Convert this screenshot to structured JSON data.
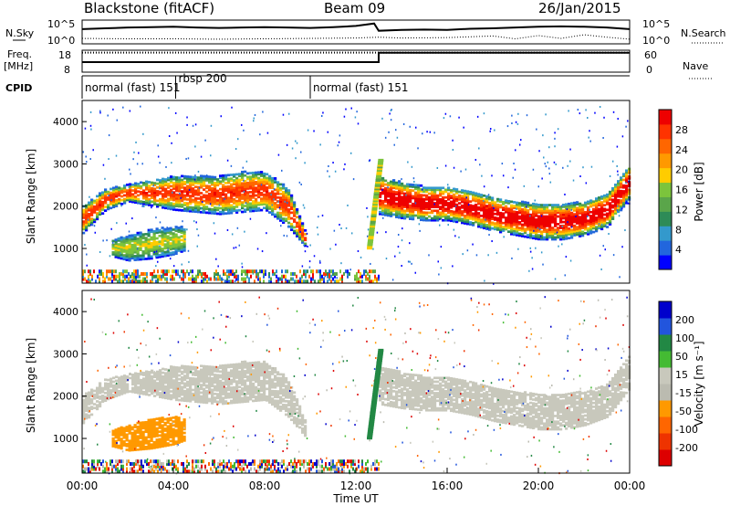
{
  "header": {
    "station": "Blackstone (fitACF)",
    "beam": "Beam 09",
    "date": "26/Jan/2015"
  },
  "left_labels": {
    "nsky": "N.Sky",
    "freq": "Freq.",
    "mhz": "[MHz]",
    "cpid": "CPID"
  },
  "right_labels": {
    "nsearch": "N.Search",
    "nave": "Nave"
  },
  "cpid_segments": [
    {
      "label": "normal (fast) 151",
      "start_hour": 0
    },
    {
      "label": "rbsp 200",
      "start_hour": 4.1
    },
    {
      "label": "normal (fast) 151",
      "start_hour": 10.0
    }
  ],
  "colors": {
    "power": [
      "#0000ff",
      "#2266dd",
      "#3399cc",
      "#2e8b57",
      "#5aa54a",
      "#7cc43c",
      "#ffcc00",
      "#ff9900",
      "#ff6600",
      "#ff3300",
      "#ee0000"
    ],
    "velocity": [
      "#0000cc",
      "#2255dd",
      "#228844",
      "#44bb33",
      "#c8c8bc",
      "#bbbbb0",
      "#ff9900",
      "#ff6600",
      "#ee3300",
      "#dd0000"
    ],
    "ground_scatter": "#c8c8bc"
  },
  "chart_data": [
    {
      "type": "line",
      "name": "noise",
      "x_range": [
        0,
        24
      ],
      "ylabel_left": "N.Sky",
      "ylabel_right": "N.Search",
      "left_ticks": [
        "10^5",
        "10^0"
      ],
      "right_ticks": [
        "10^5",
        "10^0"
      ],
      "series": [
        {
          "name": "N.Sky",
          "style": "solid",
          "x": [
            0,
            1,
            2,
            3,
            4,
            5,
            6,
            7,
            8,
            9,
            10,
            11,
            12,
            12.8,
            13,
            14,
            15,
            16,
            17,
            18,
            19,
            20,
            21,
            22,
            23,
            24
          ],
          "y": [
            3.2,
            3.4,
            3.6,
            3.7,
            3.8,
            3.6,
            3.5,
            3.6,
            3.7,
            3.6,
            3.5,
            3.7,
            4.0,
            4.6,
            2.8,
            3.0,
            3.1,
            3.0,
            3.3,
            3.4,
            3.6,
            3.8,
            3.9,
            3.8,
            3.6,
            3.2
          ]
        },
        {
          "name": "N.Search",
          "style": "dotted",
          "x": [
            0,
            2,
            4,
            6,
            8,
            10,
            12,
            13,
            14,
            16,
            18,
            19,
            20,
            21,
            22,
            23,
            24
          ],
          "y": [
            0.9,
            0.8,
            0.8,
            0.7,
            0.8,
            0.9,
            1.0,
            1.2,
            1.0,
            1.1,
            1.5,
            0.8,
            1.6,
            0.9,
            1.8,
            1.2,
            0.7
          ]
        }
      ]
    },
    {
      "type": "line",
      "name": "frequency_nave",
      "x_range": [
        0,
        24
      ],
      "ylabel_left": "Freq. [MHz]",
      "ylabel_right": "Nave",
      "left_ticks": [
        18,
        8
      ],
      "right_ticks": [
        60,
        0
      ],
      "series": [
        {
          "name": "Freq.",
          "style": "solid",
          "x": [
            0,
            13,
            13,
            24
          ],
          "y": [
            12.5,
            12.5,
            17.6,
            17.6
          ]
        },
        {
          "name": "Nave",
          "style": "dotted",
          "x": [
            0,
            24
          ],
          "y": [
            58,
            58
          ]
        }
      ]
    },
    {
      "type": "heatmap",
      "name": "power",
      "x_range": [
        0,
        24
      ],
      "y_range": [
        180,
        4500
      ],
      "xlabel": "",
      "ylabel": "Slant Range [km]",
      "yticks": [
        1000,
        2000,
        3000,
        4000
      ],
      "colorbar": {
        "label": "Power [dB]",
        "ticks": [
          4,
          8,
          12,
          16,
          20,
          24,
          28
        ]
      },
      "bands": [
        {
          "x": [
            0,
            1,
            2,
            3,
            4,
            5,
            6,
            7,
            8,
            9,
            9.8
          ],
          "lo": [
            1350,
            1900,
            2100,
            2000,
            1900,
            1850,
            1800,
            1850,
            1900,
            1500,
            1000
          ],
          "hi": [
            2000,
            2400,
            2500,
            2600,
            2700,
            2700,
            2700,
            2800,
            2800,
            2400,
            1300
          ],
          "peak": 24
        },
        {
          "x": [
            1.3,
            2,
            3,
            4,
            4.5
          ],
          "lo": [
            800,
            700,
            750,
            850,
            950
          ],
          "hi": [
            1200,
            1300,
            1450,
            1500,
            1500
          ],
          "peak": 14
        },
        {
          "x": [
            13,
            14,
            15,
            16,
            17,
            18,
            19,
            20,
            21,
            22,
            23,
            24
          ],
          "lo": [
            1800,
            1700,
            1650,
            1650,
            1550,
            1400,
            1300,
            1200,
            1200,
            1300,
            1500,
            2200
          ],
          "hi": [
            2700,
            2550,
            2450,
            2450,
            2350,
            2200,
            2100,
            2050,
            2050,
            2100,
            2300,
            3000
          ],
          "peak": 28
        }
      ]
    },
    {
      "type": "heatmap",
      "name": "velocity",
      "x_range": [
        0,
        24
      ],
      "y_range": [
        180,
        4500
      ],
      "xlabel": "Time UT",
      "xticks": [
        "00:00",
        "04:00",
        "08:00",
        "12:00",
        "16:00",
        "20:00",
        "00:00"
      ],
      "ylabel": "Slant Range [km]",
      "yticks": [
        1000,
        2000,
        3000,
        4000
      ],
      "colorbar": {
        "label": "Velocity [m s⁻¹]",
        "ticks": [
          200,
          100,
          50,
          15,
          -15,
          -50,
          -100,
          -200
        ]
      },
      "bands": [
        {
          "x": [
            0,
            1,
            2,
            3,
            4,
            5,
            6,
            7,
            8,
            9,
            9.8
          ],
          "lo": [
            1350,
            1900,
            2100,
            2000,
            1900,
            1850,
            1800,
            1850,
            1900,
            1500,
            1000
          ],
          "hi": [
            2000,
            2400,
            2500,
            2600,
            2700,
            2700,
            2700,
            2800,
            2800,
            2400,
            1300
          ],
          "velocity": 0
        },
        {
          "x": [
            1.3,
            2,
            3,
            4,
            4.5
          ],
          "lo": [
            800,
            700,
            750,
            850,
            950
          ],
          "hi": [
            1200,
            1300,
            1450,
            1500,
            1500
          ],
          "velocity": -60
        },
        {
          "x": [
            13,
            14,
            15,
            16,
            17,
            18,
            19,
            20,
            21,
            22,
            23,
            24
          ],
          "lo": [
            1800,
            1700,
            1650,
            1650,
            1550,
            1400,
            1300,
            1200,
            1200,
            1300,
            1500,
            2200
          ],
          "hi": [
            2700,
            2550,
            2450,
            2450,
            2350,
            2200,
            2100,
            2050,
            2050,
            2100,
            2300,
            3000
          ],
          "velocity": 0
        }
      ]
    }
  ]
}
